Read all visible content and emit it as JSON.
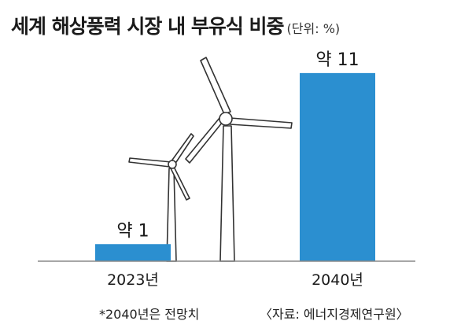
{
  "chart_data": {
    "type": "bar",
    "title": "세계 해상풍력 시장 내 부유식 비중",
    "unit": "(단위: %)",
    "categories": [
      "2023년",
      "2040년"
    ],
    "values": [
      1,
      11
    ],
    "data_labels": [
      "약 1",
      "약 11"
    ],
    "ylim": [
      0,
      11.5
    ],
    "bar_color": "#2b8fd0",
    "grid": false,
    "legend": "none"
  },
  "footer": {
    "note": "*2040년은 전망치",
    "source": "〈자료: 에너지경제연구원〉"
  }
}
